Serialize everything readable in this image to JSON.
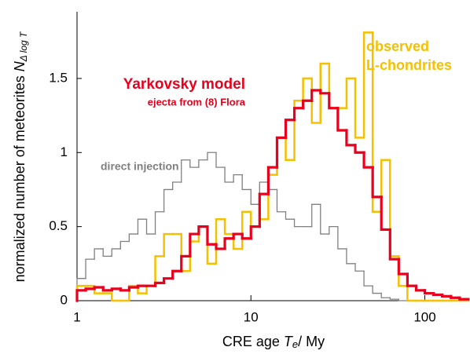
{
  "chart_data": {
    "type": "histogram",
    "xlabel": [
      "CRE age ",
      "T",
      "e",
      "/ My"
    ],
    "ylabel": [
      "normalized number of meteorites ",
      "N",
      "Δ log T"
    ],
    "xscale": "log",
    "xlim": [
      1,
      180
    ],
    "xticks": [
      1,
      10,
      100
    ],
    "ylim": [
      0,
      1.95
    ],
    "yticks": [
      0,
      0.5,
      1,
      1.5
    ],
    "bins": [
      1.0,
      1.122,
      1.259,
      1.413,
      1.585,
      1.778,
      1.995,
      2.239,
      2.512,
      2.818,
      3.162,
      3.548,
      3.981,
      4.467,
      5.012,
      5.623,
      6.31,
      7.079,
      7.943,
      8.913,
      10,
      11.22,
      12.59,
      14.13,
      15.85,
      17.78,
      19.95,
      22.39,
      25.12,
      28.18,
      31.62,
      35.48,
      39.81,
      44.67,
      50.12,
      56.23,
      63.1,
      70.79,
      79.43,
      89.13,
      100,
      112.2,
      125.9,
      141.3,
      158.5,
      177.8
    ],
    "series": [
      {
        "name": "direct injection",
        "color": "#808080",
        "width": 1.3,
        "values": [
          0.15,
          0.28,
          0.35,
          0.3,
          0.35,
          0.4,
          0.45,
          0.55,
          0.45,
          0.6,
          0.75,
          0.8,
          0.95,
          0.9,
          0.95,
          1.0,
          0.9,
          0.8,
          0.85,
          0.75,
          0.65,
          0.8,
          0.75,
          0.6,
          0.55,
          0.5,
          0.5,
          0.65,
          0.45,
          0.5,
          0.35,
          0.25,
          0.2,
          0.1,
          0.05,
          0.02,
          0.01,
          0,
          0,
          0,
          0,
          0,
          0,
          0,
          0
        ]
      },
      {
        "name": "observed",
        "color": "#f5c000",
        "width": 2.5,
        "values": [
          0.1,
          0.1,
          0.05,
          0.05,
          0,
          0,
          0.1,
          0.05,
          0.1,
          0.3,
          0.45,
          0.45,
          0.2,
          0.4,
          0.5,
          0.25,
          0.55,
          0.45,
          0.35,
          0.6,
          0.5,
          0.55,
          0.85,
          1.1,
          0.95,
          1.35,
          1.5,
          1.2,
          1.6,
          1.3,
          1.3,
          1.5,
          1.1,
          1.81,
          0.6,
          0.95,
          0.3,
          0.1,
          0,
          0,
          0,
          0,
          0,
          0,
          0
        ]
      },
      {
        "name": "Yarkovsky model",
        "color": "#e8001c",
        "width": 3.2,
        "values": [
          0.07,
          0.08,
          0.09,
          0.07,
          0.08,
          0.07,
          0.09,
          0.1,
          0.1,
          0.12,
          0.15,
          0.2,
          0.3,
          0.45,
          0.5,
          0.38,
          0.35,
          0.42,
          0.45,
          0.42,
          0.5,
          0.72,
          0.9,
          1.1,
          1.22,
          1.3,
          1.35,
          1.42,
          1.4,
          1.3,
          1.15,
          1.05,
          1.0,
          0.9,
          0.7,
          0.48,
          0.28,
          0.18,
          0.1,
          0.07,
          0.05,
          0.04,
          0.03,
          0.02,
          0.01
        ]
      }
    ],
    "annotations": [
      "ejecta from (8) Flora",
      "L-chondrites"
    ]
  }
}
